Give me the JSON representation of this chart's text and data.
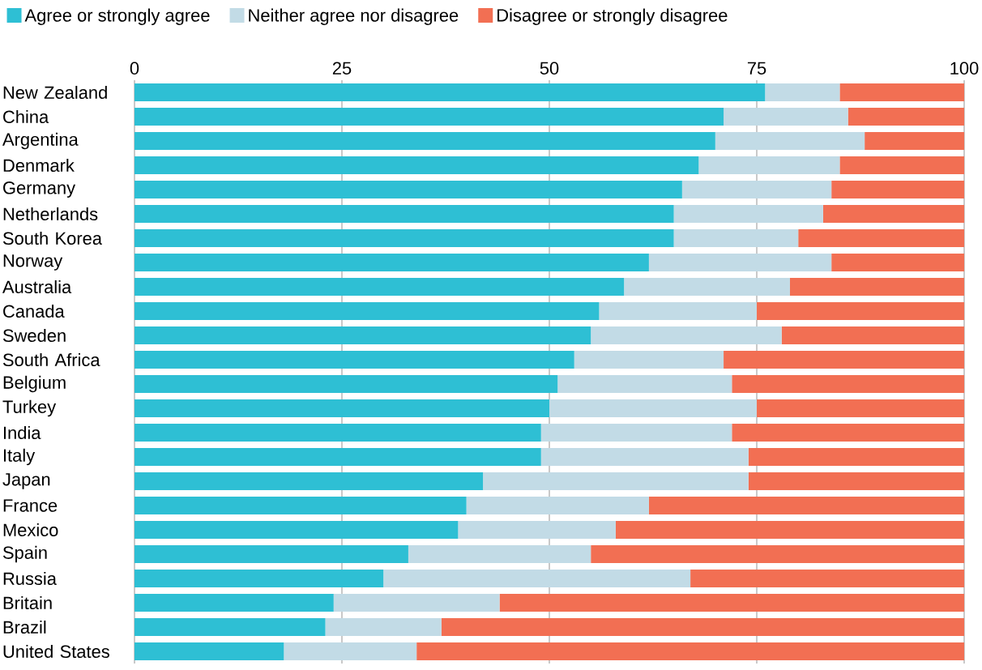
{
  "chart_data": {
    "type": "bar",
    "orientation": "horizontal",
    "stacked": true,
    "categories": [
      "New Zealand",
      "China",
      "Argentina",
      "Denmark",
      "Germany",
      "Netherlands",
      "South Korea",
      "Norway",
      "Australia",
      "Canada",
      "Sweden",
      "South Africa",
      "Belgium",
      "Turkey",
      "India",
      "Italy",
      "Japan",
      "France",
      "Mexico",
      "Spain",
      "Russia",
      "Britain",
      "Brazil",
      "United States"
    ],
    "series": [
      {
        "name": "Agree or strongly agree",
        "color": "#2ebfd4",
        "values": [
          76,
          71,
          70,
          68,
          66,
          65,
          65,
          62,
          59,
          56,
          55,
          53,
          51,
          50,
          49,
          49,
          42,
          40,
          39,
          33,
          30,
          24,
          23,
          18
        ]
      },
      {
        "name": "Neither agree nor disagree",
        "color": "#c2dbe6",
        "values": [
          9,
          15,
          18,
          17,
          18,
          18,
          15,
          22,
          20,
          19,
          23,
          18,
          21,
          25,
          23,
          25,
          32,
          22,
          19,
          22,
          37,
          20,
          14,
          16
        ]
      },
      {
        "name": "Disagree or strongly disagree",
        "color": "#f26f53",
        "values": [
          15,
          14,
          12,
          15,
          16,
          17,
          20,
          16,
          21,
          25,
          22,
          29,
          28,
          25,
          28,
          26,
          26,
          38,
          42,
          45,
          33,
          56,
          63,
          66
        ]
      }
    ],
    "xlim": [
      0,
      100
    ],
    "xticks": [
      0,
      25,
      50,
      75,
      100
    ],
    "grid": "x",
    "legend": "top left"
  }
}
